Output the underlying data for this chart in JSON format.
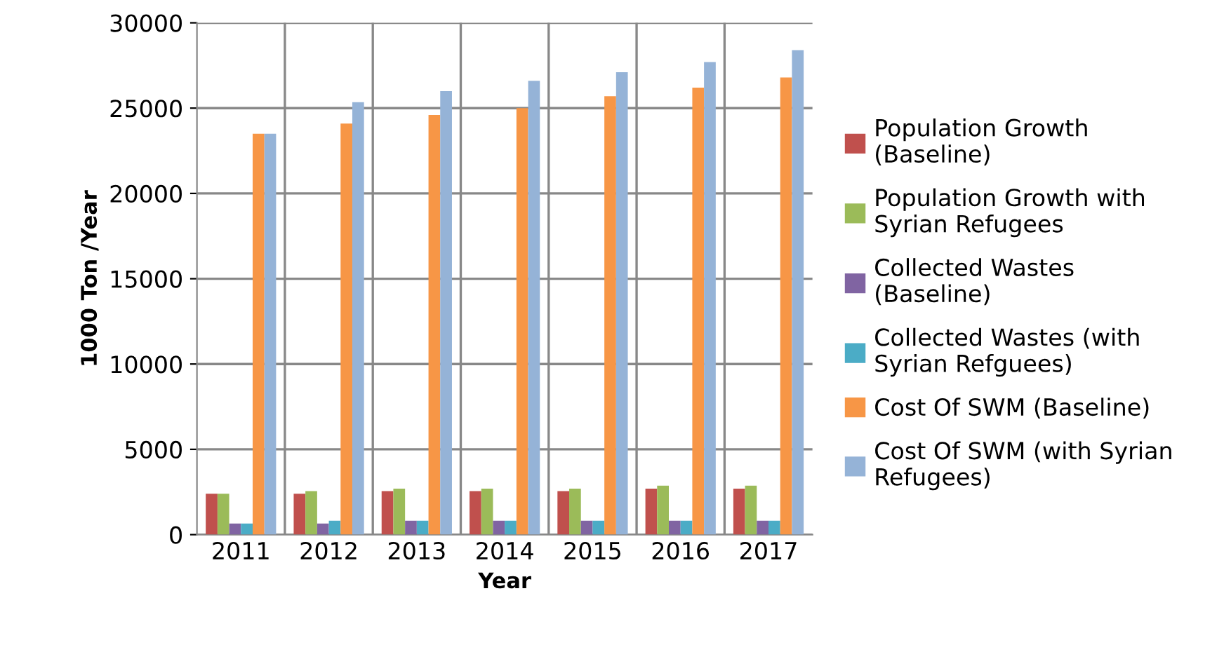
{
  "chart_data": {
    "type": "bar",
    "xlabel": "Year",
    "ylabel": "1000 Ton /Year",
    "categories": [
      "2011",
      "2012",
      "2013",
      "2014",
      "2015",
      "2016",
      "2017"
    ],
    "series": [
      {
        "name": "Population Growth (Baseline)",
        "color": "#c0504d",
        "values": [
          2400,
          2400,
          2550,
          2550,
          2550,
          2700,
          2700
        ]
      },
      {
        "name": "Population Growth with Syrian Refugees",
        "color": "#9bbb59",
        "values": [
          2400,
          2550,
          2700,
          2700,
          2700,
          2870,
          2870
        ]
      },
      {
        "name": "Collected Wastes (Baseline)",
        "color": "#8064a2",
        "values": [
          650,
          650,
          820,
          820,
          820,
          820,
          820
        ]
      },
      {
        "name": "Collected Wastes (with Syrian Refguees)",
        "color": "#4bacc6",
        "values": [
          650,
          820,
          820,
          820,
          820,
          820,
          820
        ]
      },
      {
        "name": "Cost Of SWM (Baseline)",
        "color": "#f79646",
        "values": [
          23500,
          24100,
          24600,
          25000,
          25700,
          26200,
          26800
        ]
      },
      {
        "name": "Cost Of SWM (with Syrian Refugees)",
        "color": "#95b3d7",
        "values": [
          23500,
          25350,
          26000,
          26600,
          27100,
          27700,
          28400
        ]
      }
    ],
    "ylim": [
      0,
      30000
    ],
    "yticks": [
      0,
      5000,
      10000,
      15000,
      20000,
      25000,
      30000
    ],
    "grid": true,
    "legend": "right"
  }
}
